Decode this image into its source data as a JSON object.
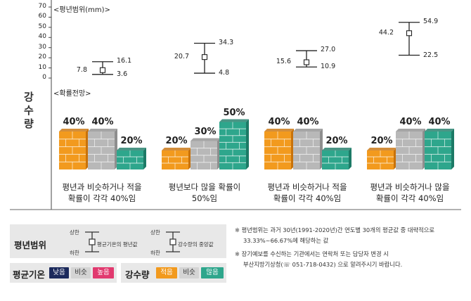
{
  "side_label": [
    "강",
    "수",
    "량"
  ],
  "colors": {
    "orange": "#f29a1e",
    "gray": "#b8b8b8",
    "teal": "#2ea68c",
    "navy": "#1c2a5c",
    "lightgray": "#d4d4d4",
    "pink": "#e13a6f",
    "legend_bg": "#e8e8e8"
  },
  "chart_data": {
    "type": "errorbar",
    "title": "<평년범위(mm)>",
    "ylim": [
      0,
      70
    ],
    "yticks": [
      0,
      10,
      20,
      30,
      40,
      50,
      60,
      70
    ],
    "points": [
      {
        "mid": 7.8,
        "lower": 3.6,
        "upper": 16.1
      },
      {
        "mid": 20.7,
        "lower": 4.8,
        "upper": 34.3
      },
      {
        "mid": 15.6,
        "lower": 10.9,
        "upper": 27.0
      },
      {
        "mid": 44.2,
        "lower": 22.5,
        "upper": 54.9
      }
    ],
    "point_labels": [
      {
        "mid": "7.8",
        "lower": "3.6",
        "upper": "16.1"
      },
      {
        "mid": "20.7",
        "lower": "4.8",
        "upper": "34.3"
      },
      {
        "mid": "15.6",
        "lower": "10.9",
        "upper": "27.0"
      },
      {
        "mid": "44.2",
        "lower": "22.5",
        "upper": "54.9"
      }
    ]
  },
  "probability": {
    "title": "<확률전망>",
    "groups": [
      {
        "below": 40,
        "similar": 40,
        "above": 20,
        "labels": [
          "40%",
          "40%",
          "20%"
        ],
        "text_line1": "평년과 비슷하거나 적을",
        "text_line2": "확률이 각각 40%임"
      },
      {
        "below": 20,
        "similar": 30,
        "above": 50,
        "labels": [
          "20%",
          "30%",
          "50%"
        ],
        "text_line1": "평년보다 많을 확률이",
        "text_line2": "50%임"
      },
      {
        "below": 40,
        "similar": 40,
        "above": 20,
        "labels": [
          "40%",
          "40%",
          "20%"
        ],
        "text_line1": "평년과 비슷하거나 적을",
        "text_line2": "확률이 각각 40%임"
      },
      {
        "below": 20,
        "similar": 40,
        "above": 40,
        "labels": [
          "20%",
          "40%",
          "40%"
        ],
        "text_line1": "평년과 비슷하거나 많을",
        "text_line2": "확률이 각각 40%임"
      }
    ]
  },
  "legend": {
    "range_title": "평년범위",
    "diagram1": {
      "upper": "상한",
      "lower": "하한",
      "mid": "평균기온의 평년값"
    },
    "diagram2": {
      "upper": "상한",
      "lower": "하한",
      "mid": "강수량의 중앙값"
    },
    "temp_title": "평균기온",
    "temp_items": [
      "낮음",
      "비슷",
      "높음"
    ],
    "precip_title": "강수량",
    "precip_items": [
      "적음",
      "비슷",
      "많음"
    ]
  },
  "notes": {
    "note1_line1": "※ 평년범위는 과거 30년(1991-2020년)간 연도별 30개의 평균값 중 대략적으로",
    "note1_line2": "33.33%~66.67%에 해당하는 값",
    "note2_line1": "※ 장기예보를 수신하는 기관에서는 연락처 또는 담당자 변경 시",
    "note2_line2": "부산지방기상청(☏ 051-718-0432) 으로 알려주시기 바랍니다."
  }
}
